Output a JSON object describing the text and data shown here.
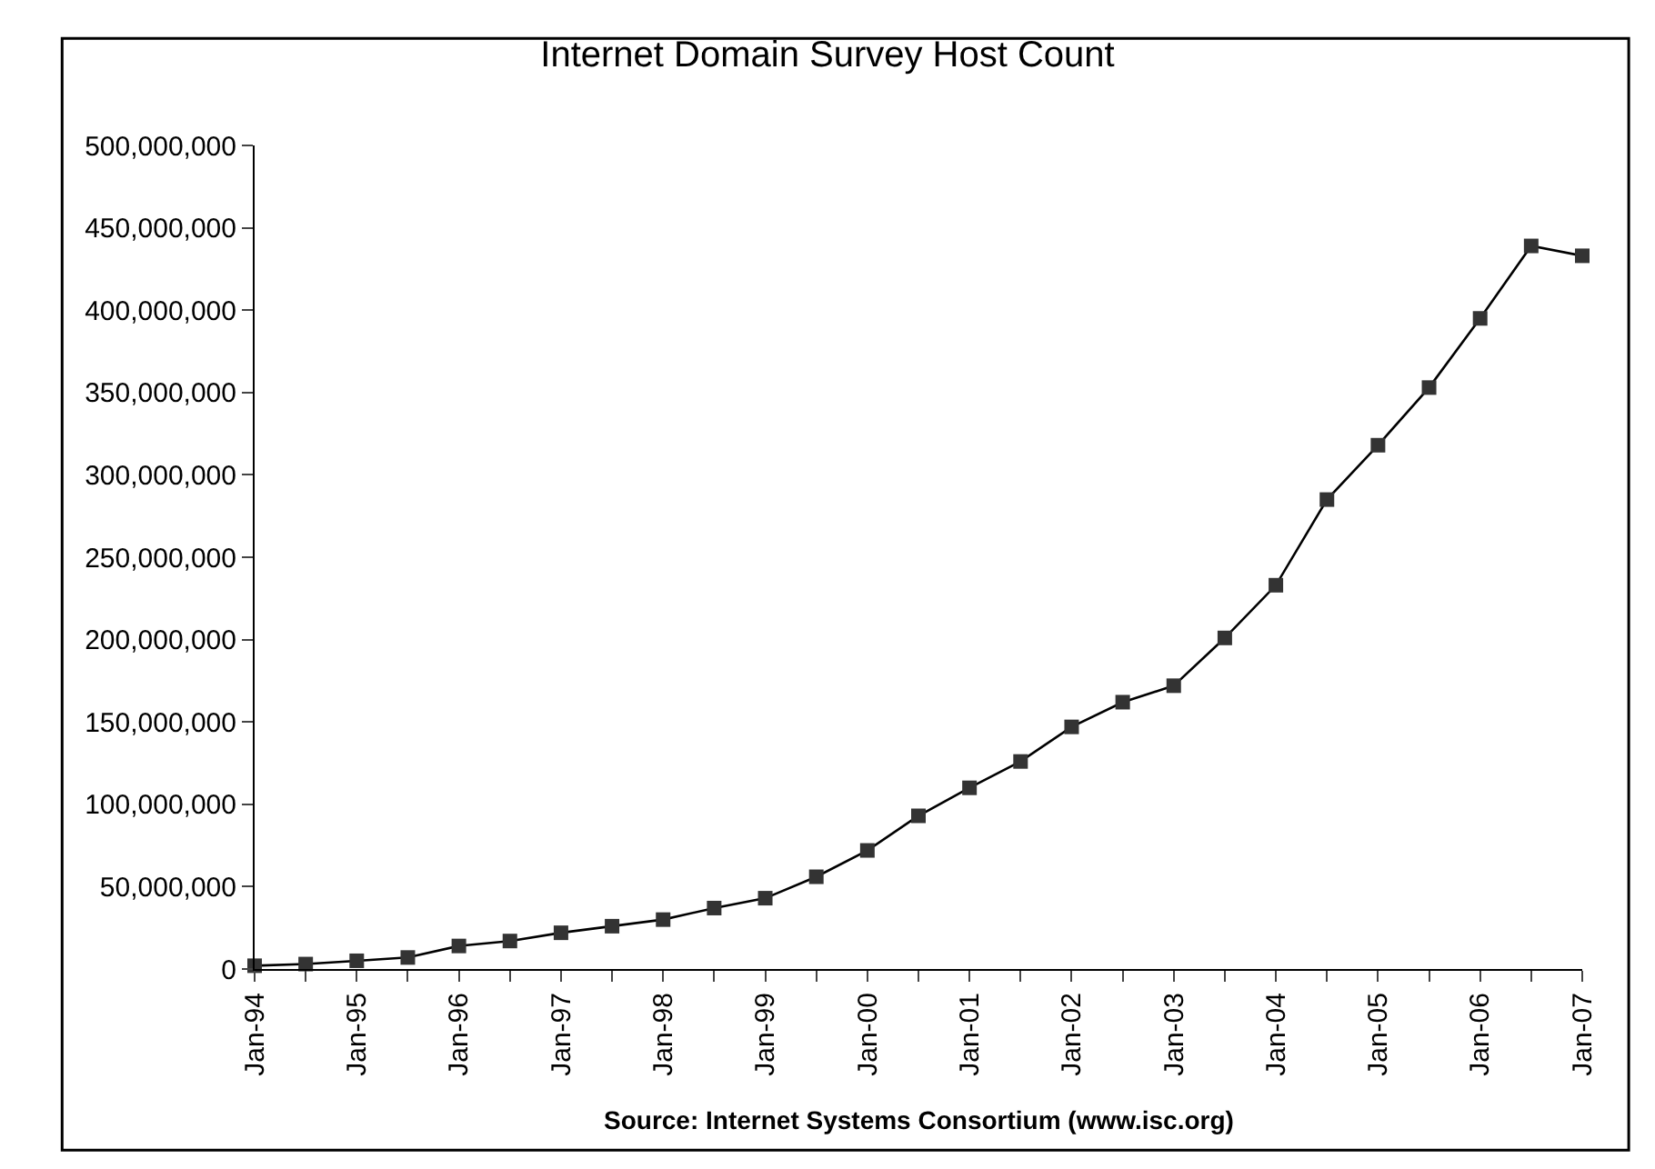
{
  "chart_data": {
    "type": "line",
    "title": "Internet Domain Survey Host Count",
    "categories": [
      "Jan-94",
      null,
      "Jan-95",
      null,
      "Jan-96",
      null,
      "Jan-97",
      null,
      "Jan-98",
      null,
      "Jan-99",
      null,
      "Jan-00",
      null,
      "Jan-01",
      null,
      "Jan-02",
      null,
      "Jan-03",
      null,
      "Jan-04",
      null,
      "Jan-05",
      null,
      "Jan-06",
      null,
      "Jan-07"
    ],
    "series": [
      {
        "color": "#333333",
        "values": [
          2000000,
          3000000,
          5000000,
          7000000,
          14000000,
          17000000,
          22000000,
          26000000,
          30000000,
          37000000,
          43000000,
          56000000,
          72000000,
          93000000,
          110000000,
          126000000,
          147000000,
          162000000,
          172000000,
          201000000,
          233000000,
          285000000,
          318000000,
          353000000,
          395000000,
          439000000,
          433000000
        ]
      }
    ],
    "ylim": [
      0,
      500000000
    ],
    "yticks": [
      {
        "value": 0,
        "label": "0"
      },
      {
        "value": 50000000,
        "label": "50,000,000"
      },
      {
        "value": 100000000,
        "label": "100,000,000"
      },
      {
        "value": 150000000,
        "label": "150,000,000"
      },
      {
        "value": 200000000,
        "label": "200,000,000"
      },
      {
        "value": 250000000,
        "label": "250,000,000"
      },
      {
        "value": 300000000,
        "label": "300,000,000"
      },
      {
        "value": 350000000,
        "label": "350,000,000"
      },
      {
        "value": 400000000,
        "label": "400,000,000"
      },
      {
        "value": 450000000,
        "label": "450,000,000"
      },
      {
        "value": 500000000,
        "label": "500,000,000"
      }
    ],
    "marker": "square",
    "line_style": "solid",
    "annotations": [
      "Source: Internet Systems Consortium (www.isc.org)"
    ]
  }
}
